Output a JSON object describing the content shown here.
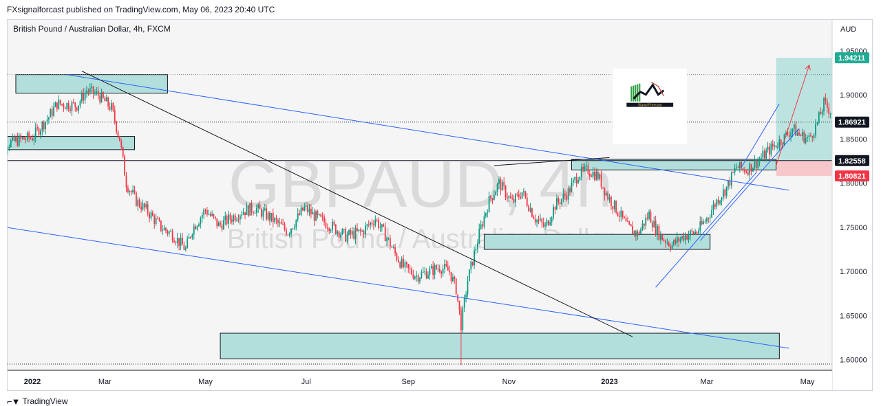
{
  "header": {
    "publisher": "FXsignalforcast published on TradingView.com, May 06, 2023 20:40 UTC"
  },
  "footer": {
    "brand": "TradingView"
  },
  "chart_data": {
    "type": "candlestick",
    "symbol_title": "British Pound / Australian Dollar, 4h, FXCM",
    "watermark_main": "GBPAUD, 4h",
    "watermark_sub": "British Pound / Australian Dollar",
    "currency": "AUD",
    "ylim": [
      1.588,
      1.985
    ],
    "y_ticks": [
      {
        "value": 1.95,
        "label": "1.95000"
      },
      {
        "value": 1.9,
        "label": "1.90000"
      },
      {
        "value": 1.85,
        "label": "1.85000"
      },
      {
        "value": 1.8,
        "label": "1.80000"
      },
      {
        "value": 1.75,
        "label": "1.75000"
      },
      {
        "value": 1.7,
        "label": "1.70000"
      },
      {
        "value": 1.65,
        "label": "1.65000"
      },
      {
        "value": 1.6,
        "label": "1.60000"
      }
    ],
    "x_range": [
      0,
      1200
    ],
    "x_ticks": [
      {
        "x": 0,
        "label": "2022",
        "bold": true
      },
      {
        "x": 59,
        "label": "Mar",
        "bold": false
      },
      {
        "x": 120,
        "label": "May",
        "bold": false
      },
      {
        "x": 181,
        "label": "Jul",
        "bold": false
      },
      {
        "x": 243,
        "label": "Sep",
        "bold": false
      },
      {
        "x": 304,
        "label": "Nov",
        "bold": false
      },
      {
        "x": 365,
        "label": "2023",
        "bold": true
      },
      {
        "x": 424,
        "label": "Mar",
        "bold": false
      },
      {
        "x": 485,
        "label": "May",
        "bold": false
      }
    ],
    "price_labels": [
      {
        "value": 1.94211,
        "label": "1.94211",
        "bg": "#22ab94",
        "fg": "#ffffff"
      },
      {
        "value": 1.86921,
        "label": "1.86921",
        "bg": "#131722",
        "fg": "#ffffff"
      },
      {
        "value": 1.82558,
        "label": "1.82558",
        "bg": "#131722",
        "fg": "#ffffff"
      },
      {
        "value": 1.80821,
        "label": "1.80821",
        "bg": "#f23645",
        "fg": "#ffffff"
      }
    ],
    "price_path": [
      [
        -8,
        1.84
      ],
      [
        5,
        1.848
      ],
      [
        15,
        1.852
      ],
      [
        25,
        1.875
      ],
      [
        30,
        1.89
      ],
      [
        42,
        1.888
      ],
      [
        48,
        1.905
      ],
      [
        55,
        1.9
      ],
      [
        63,
        1.885
      ],
      [
        68,
        1.85
      ],
      [
        72,
        1.8
      ],
      [
        78,
        1.78
      ],
      [
        85,
        1.768
      ],
      [
        93,
        1.75
      ],
      [
        100,
        1.742
      ],
      [
        108,
        1.725
      ],
      [
        112,
        1.748
      ],
      [
        120,
        1.77
      ],
      [
        128,
        1.752
      ],
      [
        135,
        1.76
      ],
      [
        142,
        1.768
      ],
      [
        150,
        1.772
      ],
      [
        160,
        1.76
      ],
      [
        170,
        1.745
      ],
      [
        180,
        1.772
      ],
      [
        188,
        1.76
      ],
      [
        196,
        1.752
      ],
      [
        205,
        1.74
      ],
      [
        215,
        1.745
      ],
      [
        223,
        1.76
      ],
      [
        230,
        1.738
      ],
      [
        235,
        1.72
      ],
      [
        240,
        1.705
      ],
      [
        248,
        1.695
      ],
      [
        256,
        1.7
      ],
      [
        262,
        1.705
      ],
      [
        268,
        1.7
      ],
      [
        272,
        1.68
      ],
      [
        275,
        1.64
      ],
      [
        279,
        1.69
      ],
      [
        283,
        1.72
      ],
      [
        287,
        1.75
      ],
      [
        292,
        1.78
      ],
      [
        298,
        1.8
      ],
      [
        306,
        1.778
      ],
      [
        312,
        1.79
      ],
      [
        320,
        1.76
      ],
      [
        326,
        1.75
      ],
      [
        332,
        1.775
      ],
      [
        340,
        1.79
      ],
      [
        346,
        1.81
      ],
      [
        352,
        1.815
      ],
      [
        358,
        1.808
      ],
      [
        364,
        1.785
      ],
      [
        370,
        1.768
      ],
      [
        376,
        1.75
      ],
      [
        382,
        1.742
      ],
      [
        389,
        1.765
      ],
      [
        393,
        1.748
      ],
      [
        397,
        1.738
      ],
      [
        403,
        1.73
      ],
      [
        410,
        1.74
      ],
      [
        418,
        1.745
      ],
      [
        424,
        1.76
      ],
      [
        430,
        1.78
      ],
      [
        436,
        1.795
      ],
      [
        442,
        1.818
      ],
      [
        448,
        1.815
      ],
      [
        455,
        1.825
      ],
      [
        462,
        1.838
      ],
      [
        470,
        1.85
      ],
      [
        476,
        1.862
      ],
      [
        480,
        1.855
      ],
      [
        486,
        1.85
      ],
      [
        491,
        1.868
      ],
      [
        495,
        1.89
      ],
      [
        500,
        1.88
      ],
      [
        504,
        1.875
      ]
    ],
    "seed": 7,
    "zones": [
      {
        "x1": 5,
        "x2": 97,
        "y1": 1.902,
        "y2": 1.923,
        "fill": "#b2dfdb",
        "stroke": "#131722"
      },
      {
        "x1": -8,
        "x2": 77,
        "y1": 1.838,
        "y2": 1.853,
        "fill": "#b2dfdb",
        "stroke": "#131722"
      },
      {
        "x1": 342,
        "x2": 466,
        "y1": 1.815,
        "y2": 1.827,
        "fill": "#b2dfdb",
        "stroke": "#131722"
      },
      {
        "x1": 289,
        "x2": 426,
        "y1": 1.725,
        "y2": 1.742,
        "fill": "#b2dfdb",
        "stroke": "#131722"
      },
      {
        "x1": 129,
        "x2": 468,
        "y1": 1.601,
        "y2": 1.63,
        "fill": "#b2dfdb",
        "stroke": "#131722"
      }
    ],
    "position": {
      "x1": 466,
      "x2": 520,
      "entry": 1.82558,
      "target": 1.94211,
      "stop": 1.80821,
      "profit_fill": "#b2dfdb",
      "loss_fill": "#f7c3c7"
    },
    "lines": [
      {
        "x1": -8,
        "y1": 1.752,
        "x2": 474,
        "y2": 1.613,
        "color": "#2962ff",
        "width": 1
      },
      {
        "x1": 36,
        "y1": 1.923,
        "x2": 474,
        "y2": 1.792,
        "color": "#2962ff",
        "width": 1
      },
      {
        "x1": 393,
        "y1": 1.682,
        "x2": 454,
        "y2": 1.812,
        "color": "#2962ff",
        "width": 1
      },
      {
        "x1": 445,
        "y1": 1.818,
        "x2": 468,
        "y2": 1.89,
        "color": "#2962ff",
        "width": 1
      },
      {
        "x1": 420,
        "y1": 1.735,
        "x2": 480,
        "y2": 1.862,
        "color": "#2962ff",
        "width": 1
      },
      {
        "x1": 45,
        "y1": 1.927,
        "x2": 379,
        "y2": 1.626,
        "color": "#131722",
        "width": 1
      },
      {
        "x1": 295,
        "y1": 1.82,
        "x2": 365,
        "y2": 1.829,
        "color": "#131722",
        "width": 1
      },
      {
        "x1": 466,
        "y1": 1.82,
        "x2": 486,
        "y2": 1.933,
        "color": "#f23645",
        "width": 1,
        "arrow": true
      }
    ],
    "hlines": [
      {
        "y": 1.923,
        "style": "dotted",
        "color": "#787b86"
      },
      {
        "y": 1.86921,
        "style": "dotted",
        "color": "#131722"
      },
      {
        "y": 1.82558,
        "style": "solid",
        "color": "#131722"
      }
    ],
    "bottom_dotted": 1.595,
    "logo": {
      "x1": 367,
      "x2": 412,
      "y1": 1.844,
      "y2": 1.93,
      "caption": "Signal Forecast"
    }
  }
}
